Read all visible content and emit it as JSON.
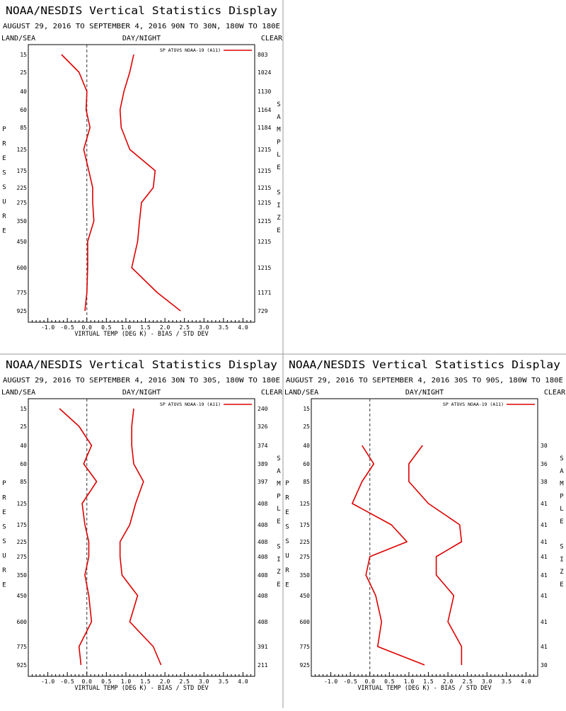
{
  "axis": {
    "xlabel": "VIRTUAL TEMP (DEG K) - BIAS / STD DEV",
    "xticks": [
      -1.0,
      -0.5,
      0.0,
      0.5,
      1.0,
      1.5,
      2.0,
      2.5,
      3.0,
      3.5,
      4.0
    ],
    "xtick_labels": [
      "-1.0",
      "-0.5",
      "0.0",
      "0.5",
      "1.0",
      "1.5",
      "2.0",
      "2.5",
      "3.0",
      "3.5",
      "4.0"
    ],
    "xlim": [
      -1.5,
      4.3
    ],
    "ylabel_letters": [
      "P",
      "R",
      "E",
      "S",
      "S",
      "U",
      "R",
      "E"
    ],
    "sample_letters": [
      "S",
      "A",
      "M",
      "P",
      "L",
      "E",
      "",
      "S",
      "I",
      "Z",
      "E"
    ],
    "land_sea": "LAND/SEA",
    "day_night": "DAY/NIGHT",
    "clear": "CLEAR"
  },
  "colors": {
    "series": "#dd0000",
    "axis": "#000000",
    "divider": "#999999"
  },
  "chart_data": [
    {
      "type": "line",
      "title": "NOAA/NESDIS Vertical Statistics Display",
      "subtitle": "AUGUST 29, 2016 TO SEPTEMBER 4, 2016  90N TO 30N, 180W TO 180E",
      "legend": "SP ATOVS NOAA-19 (A11)",
      "pressure_levels": [
        "15",
        "25",
        "40",
        "60",
        "85",
        "125",
        "175",
        "225",
        "275",
        "350",
        "450",
        "600",
        "775",
        "925"
      ],
      "sample_size": [
        "803",
        "1024",
        "1130",
        "1164",
        "1184",
        "1215",
        "1215",
        "1215",
        "1215",
        "1215",
        "1215",
        "1215",
        "1171",
        "729"
      ],
      "series": [
        {
          "name": "BIAS",
          "values": [
            -0.65,
            -0.2,
            0.0,
            -0.02,
            0.08,
            -0.08,
            0.05,
            0.15,
            0.15,
            0.18,
            0.02,
            0.02,
            0.0,
            -0.05
          ]
        },
        {
          "name": "STD DEV",
          "values": [
            1.2,
            1.1,
            0.95,
            0.85,
            0.88,
            1.1,
            1.75,
            1.7,
            1.4,
            1.35,
            1.3,
            1.15,
            1.8,
            2.4
          ]
        }
      ]
    },
    {
      "type": "line",
      "title": "NOAA/NESDIS Vertical Statistics Display",
      "subtitle": "AUGUST 29, 2016 TO SEPTEMBER 4, 2016  30N TO 30S, 180W TO 180E",
      "legend": "SP ATOVS NOAA-19 (A11)",
      "pressure_levels": [
        "15",
        "25",
        "40",
        "60",
        "85",
        "125",
        "175",
        "225",
        "275",
        "350",
        "450",
        "600",
        "775",
        "925"
      ],
      "sample_size": [
        "240",
        "326",
        "374",
        "389",
        "397",
        "408",
        "408",
        "408",
        "408",
        "408",
        "408",
        "408",
        "391",
        "211"
      ],
      "series": [
        {
          "name": "BIAS",
          "values": [
            -0.7,
            -0.2,
            0.12,
            -0.08,
            0.25,
            -0.12,
            -0.05,
            0.05,
            0.05,
            -0.05,
            0.05,
            0.12,
            -0.2,
            -0.15
          ]
        },
        {
          "name": "STD DEV",
          "values": [
            1.2,
            1.15,
            1.15,
            1.2,
            1.45,
            1.25,
            1.1,
            0.85,
            0.85,
            0.9,
            1.3,
            1.1,
            1.7,
            1.9
          ]
        }
      ]
    },
    {
      "type": "line",
      "title": "NOAA/NESDIS Vertical Statistics Display",
      "subtitle": "AUGUST 29, 2016 TO SEPTEMBER 4, 2016  30S TO 90S, 180W TO 180E",
      "legend": "SP ATOVS NOAA-19 (A11)",
      "pressure_levels": [
        "15",
        "25",
        "40",
        "60",
        "85",
        "125",
        "175",
        "225",
        "275",
        "350",
        "450",
        "600",
        "775",
        "925"
      ],
      "sample_size": [
        "",
        "",
        "30",
        "36",
        "38",
        "41",
        "41",
        "41",
        "41",
        "41",
        "41",
        "41",
        "41",
        "30"
      ],
      "series": [
        {
          "name": "BIAS",
          "values": [
            null,
            null,
            -0.2,
            0.1,
            -0.2,
            -0.45,
            0.55,
            0.95,
            0.0,
            -0.1,
            0.15,
            0.3,
            0.2,
            1.4
          ]
        },
        {
          "name": "STD DEV",
          "values": [
            null,
            null,
            1.35,
            1.0,
            1.0,
            1.5,
            2.3,
            2.35,
            1.7,
            1.7,
            2.15,
            2.0,
            2.35,
            2.35
          ]
        }
      ]
    }
  ]
}
